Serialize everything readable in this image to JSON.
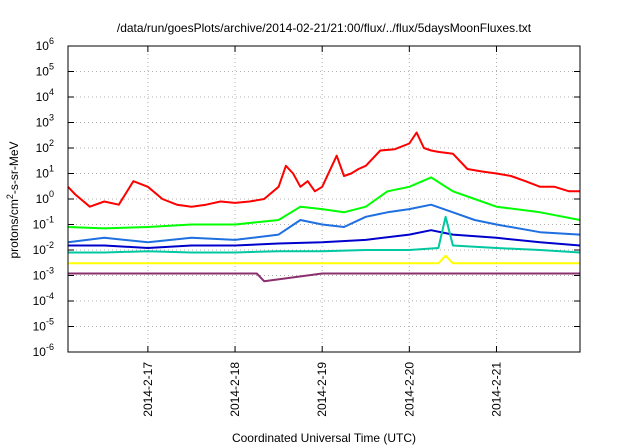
{
  "chart_data": {
    "type": "line",
    "title": "/data/run/goesPlots/archive/2014-02-21/21:00/flux/../flux/5daysMoonFluxes.txt",
    "xlabel": "Coordinated Universal Time (UTC)",
    "ylabel": {
      "pre": "protons/cm",
      "sup": "2",
      "post": "-s-sr-MeV"
    },
    "x_unit": "days (UTC)",
    "xlim": [
      "2014-02-16 02:00",
      "2014-02-21 23:00"
    ],
    "x_ticks": [
      {
        "label": "2014-2-17",
        "date": "2014-02-17"
      },
      {
        "label": "2014-2-18",
        "date": "2014-02-18"
      },
      {
        "label": "2014-2-19",
        "date": "2014-02-19"
      },
      {
        "label": "2014-2-20",
        "date": "2014-02-20"
      },
      {
        "label": "2014-2-21",
        "date": "2014-02-21"
      }
    ],
    "yscale": "log",
    "ylim": [
      1e-06,
      1000000.0
    ],
    "y_ticks": [
      {
        "base": "10",
        "exp": "-6",
        "value": 1e-06
      },
      {
        "base": "10",
        "exp": "-5",
        "value": 1e-05
      },
      {
        "base": "10",
        "exp": "-4",
        "value": 0.0001
      },
      {
        "base": "10",
        "exp": "-3",
        "value": 0.001
      },
      {
        "base": "10",
        "exp": "-2",
        "value": 0.01
      },
      {
        "base": "10",
        "exp": "-1",
        "value": 0.1
      },
      {
        "base": "10",
        "exp": "0",
        "value": 1
      },
      {
        "base": "10",
        "exp": "1",
        "value": 10
      },
      {
        "base": "10",
        "exp": "2",
        "value": 100
      },
      {
        "base": "10",
        "exp": "3",
        "value": 1000
      },
      {
        "base": "10",
        "exp": "4",
        "value": 10000
      },
      {
        "base": "10",
        "exp": "5",
        "value": 100000
      },
      {
        "base": "10",
        "exp": "6",
        "value": 1000000
      }
    ],
    "grid": true,
    "legend": "none",
    "series": [
      {
        "color": "#ff0000",
        "x": [
          "2014-02-16 02:00",
          "2014-02-16 04:00",
          "2014-02-16 08:00",
          "2014-02-16 12:00",
          "2014-02-16 16:00",
          "2014-02-16 20:00",
          "2014-02-17 00:00",
          "2014-02-17 04:00",
          "2014-02-17 08:00",
          "2014-02-17 12:00",
          "2014-02-17 16:00",
          "2014-02-17 20:00",
          "2014-02-18 00:00",
          "2014-02-18 04:00",
          "2014-02-18 08:00",
          "2014-02-18 12:00",
          "2014-02-18 14:00",
          "2014-02-18 16:00",
          "2014-02-18 18:00",
          "2014-02-18 20:00",
          "2014-02-18 22:00",
          "2014-02-19 00:00",
          "2014-02-19 04:00",
          "2014-02-19 06:00",
          "2014-02-19 08:00",
          "2014-02-19 10:00",
          "2014-02-19 12:00",
          "2014-02-19 16:00",
          "2014-02-19 20:00",
          "2014-02-20 00:00",
          "2014-02-20 02:00",
          "2014-02-20 04:00",
          "2014-02-20 06:00",
          "2014-02-20 08:00",
          "2014-02-20 12:00",
          "2014-02-20 16:00",
          "2014-02-20 20:00",
          "2014-02-21 00:00",
          "2014-02-21 04:00",
          "2014-02-21 08:00",
          "2014-02-21 12:00",
          "2014-02-21 16:00",
          "2014-02-21 20:00",
          "2014-02-21 23:00"
        ],
        "y": [
          3,
          1.5,
          0.5,
          0.8,
          0.6,
          5,
          3,
          1,
          0.6,
          0.5,
          0.6,
          0.8,
          0.7,
          0.8,
          1,
          3,
          20,
          10,
          3,
          5,
          2,
          3,
          50,
          8,
          10,
          15,
          20,
          80,
          90,
          150,
          400,
          100,
          80,
          70,
          60,
          15,
          12,
          10,
          8,
          5,
          3,
          3,
          2,
          2
        ]
      },
      {
        "color": "#00ff00",
        "x": [
          "2014-02-16 02:00",
          "2014-02-16 12:00",
          "2014-02-17 00:00",
          "2014-02-17 12:00",
          "2014-02-18 00:00",
          "2014-02-18 12:00",
          "2014-02-18 18:00",
          "2014-02-19 00:00",
          "2014-02-19 06:00",
          "2014-02-19 12:00",
          "2014-02-19 18:00",
          "2014-02-20 00:00",
          "2014-02-20 06:00",
          "2014-02-20 12:00",
          "2014-02-20 18:00",
          "2014-02-21 00:00",
          "2014-02-21 12:00",
          "2014-02-21 23:00"
        ],
        "y": [
          0.08,
          0.07,
          0.08,
          0.1,
          0.1,
          0.15,
          0.5,
          0.4,
          0.3,
          0.5,
          2,
          3,
          7,
          2,
          1,
          0.5,
          0.3,
          0.15
        ]
      },
      {
        "color": "#1e6fe0",
        "x": [
          "2014-02-16 02:00",
          "2014-02-16 12:00",
          "2014-02-17 00:00",
          "2014-02-17 12:00",
          "2014-02-18 00:00",
          "2014-02-18 12:00",
          "2014-02-18 18:00",
          "2014-02-19 00:00",
          "2014-02-19 06:00",
          "2014-02-19 12:00",
          "2014-02-19 18:00",
          "2014-02-20 00:00",
          "2014-02-20 06:00",
          "2014-02-20 12:00",
          "2014-02-20 18:00",
          "2014-02-21 00:00",
          "2014-02-21 12:00",
          "2014-02-21 23:00"
        ],
        "y": [
          0.02,
          0.03,
          0.02,
          0.03,
          0.025,
          0.04,
          0.15,
          0.1,
          0.08,
          0.2,
          0.3,
          0.4,
          0.6,
          0.3,
          0.15,
          0.1,
          0.05,
          0.04
        ]
      },
      {
        "color": "#0000cc",
        "x": [
          "2014-02-16 02:00",
          "2014-02-16 12:00",
          "2014-02-17 00:00",
          "2014-02-17 12:00",
          "2014-02-18 00:00",
          "2014-02-18 12:00",
          "2014-02-19 00:00",
          "2014-02-19 12:00",
          "2014-02-20 00:00",
          "2014-02-20 06:00",
          "2014-02-20 12:00",
          "2014-02-21 00:00",
          "2014-02-21 12:00",
          "2014-02-21 23:00"
        ],
        "y": [
          0.015,
          0.015,
          0.012,
          0.015,
          0.015,
          0.018,
          0.02,
          0.025,
          0.04,
          0.06,
          0.04,
          0.03,
          0.02,
          0.015
        ]
      },
      {
        "color": "#00c8a0",
        "x": [
          "2014-02-16 02:00",
          "2014-02-16 12:00",
          "2014-02-17 00:00",
          "2014-02-17 12:00",
          "2014-02-18 00:00",
          "2014-02-18 12:00",
          "2014-02-19 00:00",
          "2014-02-19 12:00",
          "2014-02-20 00:00",
          "2014-02-20 08:00",
          "2014-02-20 10:00",
          "2014-02-20 12:00",
          "2014-02-21 00:00",
          "2014-02-21 12:00",
          "2014-02-21 23:00"
        ],
        "y": [
          0.008,
          0.008,
          0.009,
          0.008,
          0.008,
          0.009,
          0.009,
          0.01,
          0.01,
          0.012,
          0.2,
          0.015,
          0.012,
          0.01,
          0.008
        ]
      },
      {
        "color": "#ffff00",
        "x": [
          "2014-02-16 02:00",
          "2014-02-17 00:00",
          "2014-02-18 00:00",
          "2014-02-19 00:00",
          "2014-02-20 00:00",
          "2014-02-20 08:00",
          "2014-02-20 10:00",
          "2014-02-20 12:00",
          "2014-02-21 00:00",
          "2014-02-21 23:00"
        ],
        "y": [
          0.003,
          0.003,
          0.003,
          0.003,
          0.003,
          0.003,
          0.006,
          0.003,
          0.003,
          0.003
        ]
      },
      {
        "color": "#8b2f6e",
        "x": [
          "2014-02-16 02:00",
          "2014-02-17 00:00",
          "2014-02-18 00:00",
          "2014-02-18 06:00",
          "2014-02-18 08:00",
          "2014-02-19 00:00",
          "2014-02-20 00:00",
          "2014-02-21 00:00",
          "2014-02-21 23:00"
        ],
        "y": [
          0.0012,
          0.0012,
          0.0012,
          0.0012,
          0.0006,
          0.0012,
          0.0012,
          0.0012,
          0.0012
        ]
      }
    ]
  }
}
